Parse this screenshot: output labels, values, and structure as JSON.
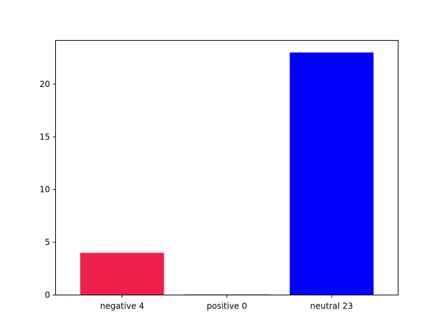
{
  "chart_data": {
    "type": "bar",
    "categories": [
      "negative 4",
      "positive 0",
      "neutral 23"
    ],
    "values": [
      4,
      0,
      23
    ],
    "colors": [
      "#ee204d",
      "#008000",
      "#0000ff"
    ],
    "title": "",
    "xlabel": "",
    "ylabel": "",
    "ylim": [
      0,
      24.15
    ],
    "yticks": [
      0,
      5,
      10,
      15,
      20
    ],
    "grid": false,
    "legend": "none"
  }
}
